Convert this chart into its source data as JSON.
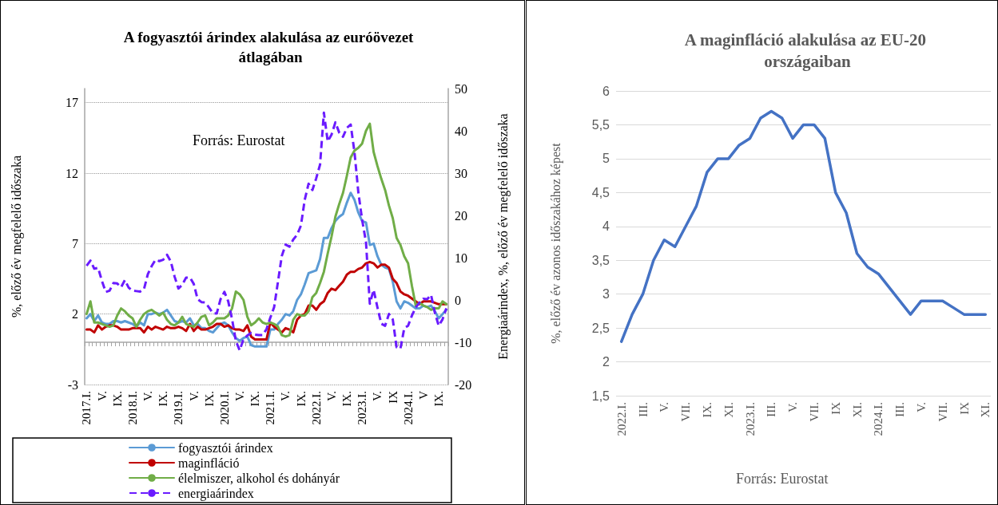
{
  "chart_data": [
    {
      "type": "line",
      "title": "A fogyasztói árindex alakulása az euróövezet átlagában",
      "ylabel": "%, előző év megfelelő időszaka",
      "y2label": "Energiaárindex, %, előző év megfelelő időszaka",
      "categories": [
        "2017.I.",
        null,
        null,
        null,
        "V.",
        null,
        null,
        null,
        "IX.",
        null,
        null,
        null,
        "2018.I.",
        null,
        null,
        null,
        "V.",
        null,
        null,
        null,
        "IX.",
        null,
        null,
        null,
        "2019.I.",
        null,
        null,
        null,
        "V.",
        null,
        null,
        null,
        "IX.",
        null,
        null,
        null,
        "2020.I.",
        null,
        null,
        null,
        "V.",
        null,
        null,
        null,
        "IX.",
        null,
        null,
        null,
        "2021.I.",
        null,
        null,
        null,
        "V.",
        null,
        null,
        null,
        "IX.",
        null,
        null,
        null,
        "2022.I.",
        null,
        null,
        null,
        "V.",
        null,
        null,
        null,
        "IX.",
        null,
        null,
        null,
        "2023.I.",
        null,
        null,
        null,
        "V.",
        null,
        null,
        null,
        "IX",
        null,
        null,
        null,
        "2024.I.",
        null,
        null,
        null,
        "V",
        null,
        null,
        null,
        "IX.",
        null,
        null
      ],
      "series": [
        {
          "name": "fogyasztói árindex",
          "color": "#5b9bd5",
          "values": [
            1.7,
            2.0,
            1.5,
            1.9,
            1.4,
            1.3,
            1.3,
            1.5,
            1.5,
            1.4,
            1.5,
            1.4,
            1.3,
            1.1,
            1.4,
            1.2,
            2.0,
            2.0,
            2.1,
            2.0,
            2.1,
            2.3,
            1.9,
            1.5,
            1.4,
            1.5,
            1.4,
            1.7,
            1.2,
            1.3,
            1.0,
            1.0,
            0.8,
            0.7,
            1.0,
            1.3,
            1.4,
            1.2,
            0.7,
            0.3,
            0.1,
            0.3,
            0.4,
            -0.2,
            -0.3,
            -0.3,
            -0.3,
            -0.3,
            0.9,
            0.9,
            1.3,
            1.6,
            2.0,
            1.9,
            2.2,
            3.0,
            3.4,
            4.1,
            4.9,
            5.0,
            5.1,
            5.9,
            7.4,
            7.4,
            8.1,
            8.6,
            8.9,
            9.1,
            9.9,
            10.6,
            10.1,
            9.2,
            8.6,
            8.5,
            6.9,
            7.0,
            6.1,
            5.5,
            5.3,
            5.2,
            4.3,
            2.9,
            2.4,
            2.9,
            2.8,
            2.6,
            2.4,
            2.4,
            2.6,
            2.5,
            2.6,
            2.2,
            1.7,
            2.0,
            2.3
          ]
        },
        {
          "name": "maginfláció",
          "color": "#c00000",
          "values": [
            0.9,
            0.9,
            0.7,
            1.2,
            0.9,
            1.1,
            1.2,
            1.2,
            1.1,
            0.9,
            0.9,
            0.9,
            1.0,
            1.0,
            1.0,
            0.7,
            1.1,
            0.9,
            1.1,
            1.0,
            0.9,
            1.1,
            1.0,
            1.0,
            1.1,
            1.0,
            0.8,
            1.3,
            0.8,
            1.1,
            0.9,
            0.9,
            1.0,
            1.1,
            1.3,
            1.3,
            1.1,
            1.2,
            1.0,
            0.9,
            0.9,
            0.8,
            1.2,
            0.4,
            0.2,
            0.2,
            0.2,
            0.2,
            1.4,
            1.1,
            0.9,
            0.7,
            1.0,
            0.9,
            0.7,
            1.6,
            1.9,
            2.0,
            2.6,
            2.6,
            2.3,
            2.7,
            2.9,
            3.5,
            3.8,
            3.7,
            4.0,
            4.3,
            4.8,
            5.0,
            5.0,
            5.2,
            5.3,
            5.6,
            5.7,
            5.6,
            5.3,
            5.5,
            5.5,
            5.3,
            4.5,
            4.2,
            3.6,
            3.4,
            3.3,
            3.1,
            2.9,
            2.7,
            2.9,
            2.9,
            2.9,
            2.8,
            2.7,
            2.7,
            2.7
          ]
        },
        {
          "name": "élelmiszer, alkohol és dohányár",
          "color": "#70ad47",
          "values": [
            2.0,
            2.9,
            1.4,
            1.4,
            1.3,
            1.2,
            1.1,
            1.2,
            1.9,
            2.4,
            2.2,
            1.9,
            1.7,
            1.1,
            1.6,
            2.0,
            2.2,
            2.3,
            2.1,
            1.9,
            2.1,
            1.6,
            1.3,
            1.2,
            1.4,
            1.8,
            1.3,
            1.2,
            1.1,
            1.4,
            1.8,
            1.9,
            1.2,
            1.4,
            1.7,
            1.7,
            1.7,
            1.9,
            2.4,
            3.6,
            3.4,
            3.0,
            1.8,
            1.2,
            1.4,
            1.7,
            1.4,
            1.3,
            1.4,
            1.3,
            1.1,
            0.5,
            0.4,
            0.5,
            1.6,
            2.0,
            1.9,
            1.9,
            2.2,
            3.2,
            3.5,
            4.2,
            5.0,
            6.3,
            7.5,
            8.9,
            9.8,
            10.6,
            11.8,
            13.1,
            13.6,
            13.8,
            14.1,
            15.0,
            15.5,
            13.5,
            12.5,
            11.6,
            10.8,
            9.7,
            8.8,
            7.4,
            6.9,
            6.1,
            5.6,
            4.0,
            2.6,
            2.8,
            2.6,
            2.5,
            2.3,
            2.4,
            2.4,
            2.9,
            2.7
          ]
        },
        {
          "name": "energiaárindex",
          "color": "#6a1bff",
          "axis": "y2",
          "line_style": "dashed",
          "values": [
            8.1,
            9.3,
            7.4,
            7.6,
            4.5,
            1.9,
            2.2,
            4.0,
            3.9,
            3.0,
            4.7,
            2.9,
            2.2,
            2.1,
            2.0,
            2.6,
            6.1,
            8.0,
            9.5,
            9.2,
            9.5,
            10.7,
            9.1,
            5.5,
            2.7,
            3.6,
            5.3,
            5.3,
            3.8,
            0.2,
            -0.5,
            -0.6,
            -1.8,
            -3.1,
            -3.2,
            0.2,
            1.9,
            -0.3,
            -4.5,
            -9.7,
            -11.9,
            -9.3,
            -8.4,
            -7.8,
            -8.2,
            -8.3,
            -8.3,
            -6.9,
            -4.2,
            -1.7,
            4.3,
            10.4,
            13.1,
            12.6,
            14.3,
            15.4,
            17.6,
            23.7,
            27.5,
            26.0,
            28.8,
            32.0,
            44.3,
            37.5,
            39.1,
            42.0,
            39.6,
            38.6,
            40.7,
            41.5,
            34.9,
            25.5,
            18.9,
            13.7,
            -0.9,
            2.4,
            -1.8,
            -5.6,
            -6.1,
            -3.3,
            -4.6,
            -11.2,
            -11.5,
            -6.7,
            -6.1,
            -3.7,
            -1.8,
            -0.6,
            0.3,
            0.2,
            1.2,
            -3.0,
            -6.1,
            -4.6,
            -2.0
          ]
        }
      ],
      "ylim": [
        -3,
        18
      ],
      "yticks": [
        -3,
        2,
        7,
        12,
        17
      ],
      "y2lim": [
        -20,
        50
      ],
      "y2ticks": [
        -20,
        -10,
        0,
        10,
        20,
        30,
        40,
        50
      ],
      "grid": "y",
      "legend": "bottom",
      "marker": "none",
      "line_style": "solid",
      "annotations": [
        "Forrás: Eurostat"
      ]
    },
    {
      "type": "line",
      "title": "A maginfláció alakulása az EU-20 országaiban",
      "ylabel": "%, előző év azonos időszakához képest",
      "categories": [
        "2022.I.",
        null,
        "III.",
        null,
        "V.",
        null,
        "VII.",
        null,
        "IX.",
        null,
        "XI.",
        null,
        "2023.I.",
        null,
        "III.",
        null,
        "V.",
        null,
        "VII.",
        null,
        "IX",
        null,
        "XI.",
        null,
        "2024.I.",
        null,
        "III.",
        null,
        "V.",
        null,
        "VII.",
        null,
        "IX",
        null,
        "XI."
      ],
      "series": [
        {
          "color": "#4472c4",
          "values": [
            2.3,
            2.7,
            3.0,
            3.5,
            3.8,
            3.7,
            4.0,
            4.3,
            4.8,
            5.0,
            5.0,
            5.2,
            5.3,
            5.6,
            5.7,
            5.6,
            5.3,
            5.5,
            5.5,
            5.3,
            4.5,
            4.2,
            3.6,
            3.4,
            3.3,
            3.1,
            2.9,
            2.7,
            2.9,
            2.9,
            2.9,
            2.8,
            2.7,
            2.7,
            2.7
          ]
        }
      ],
      "ylim": [
        1.5,
        6
      ],
      "yticks": [
        {
          "value": 1.5,
          "label": "1,5"
        },
        2,
        {
          "value": 2.5,
          "label": "2,5"
        },
        3,
        {
          "value": 3.5,
          "label": "3,5"
        },
        4,
        {
          "value": 4.5,
          "label": "4,5"
        },
        5,
        {
          "value": 5.5,
          "label": "5,5"
        },
        6
      ],
      "grid": "y",
      "marker": "none",
      "line_style": "solid",
      "annotations": [
        "Forrás: Eurostat"
      ]
    }
  ]
}
